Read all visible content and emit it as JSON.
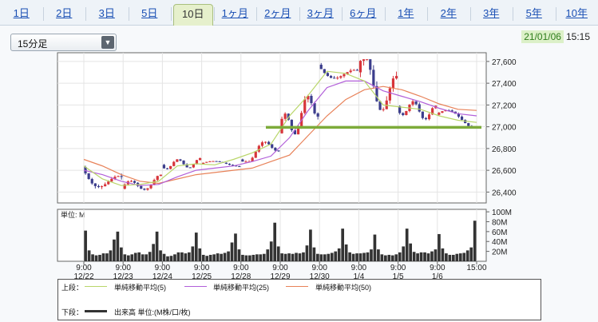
{
  "tabs": [
    "1日",
    "2日",
    "3日",
    "5日",
    "10日",
    "1ヶ月",
    "2ヶ月",
    "3ヶ月",
    "6ヶ月",
    "1年",
    "2年",
    "3年",
    "5年",
    "10年"
  ],
  "active_tab": "10日",
  "interval": {
    "label": "15分足"
  },
  "stamp": {
    "date": "21/01/06",
    "time": "15:15"
  },
  "colors": {
    "candle_up": "#d7343a",
    "candle_down": "#3b3d8c",
    "ma5": "#b9d66a",
    "ma25": "#b25fd9",
    "ma50": "#e88259",
    "support_line": "#7dab3a",
    "volume": "#333333"
  },
  "legend": {
    "upper_label": "上段：",
    "lower_label": "下段：",
    "ma5": "単純移動平均(5)",
    "ma25": "単純移動平均(25)",
    "ma50": "単純移動平均(50)",
    "volume": "出来高 単位:(M株/口/枚)"
  },
  "chart_data": {
    "type": "candlestick",
    "price_axis": {
      "ticks": [
        "27,600",
        "27,400",
        "27,200",
        "27,000",
        "26,800",
        "26,600",
        "26,400"
      ],
      "ylim": [
        26300,
        27680
      ]
    },
    "volume_axis": {
      "unit_label": "単位: M",
      "ticks": [
        "100M",
        "80M",
        "60M",
        "40M",
        "20M"
      ],
      "ylim": [
        0,
        105
      ]
    },
    "x_ticks": [
      {
        "time": "9:00",
        "date": "12/22"
      },
      {
        "time": "9:00",
        "date": "12/23"
      },
      {
        "time": "9:00",
        "date": "12/24"
      },
      {
        "time": "9:00",
        "date": "12/25"
      },
      {
        "time": "9:00",
        "date": "12/28"
      },
      {
        "time": "9:00",
        "date": "12/29"
      },
      {
        "time": "9:00",
        "date": "12/30"
      },
      {
        "time": "9:00",
        "date": "1/4"
      },
      {
        "time": "9:00",
        "date": "1/5"
      },
      {
        "time": "9:00",
        "date": "1/6"
      },
      {
        "time": "15:00",
        "date": ""
      }
    ],
    "sessions": [
      {
        "day": "12/22",
        "open": 26630,
        "close": 26430,
        "high": 26680,
        "low": 26370
      },
      {
        "day": "12/23",
        "open": 26430,
        "close": 26510,
        "high": 26560,
        "low": 26400
      },
      {
        "day": "12/24",
        "open": 26650,
        "close": 26670,
        "high": 26720,
        "low": 26600
      },
      {
        "day": "12/25",
        "open": 26660,
        "close": 26660,
        "high": 26700,
        "low": 26630
      },
      {
        "day": "12/28",
        "open": 26700,
        "close": 26850,
        "high": 26880,
        "low": 26680
      },
      {
        "day": "12/29",
        "open": 26940,
        "close": 27230,
        "high": 27320,
        "low": 26930
      },
      {
        "day": "12/30",
        "open": 27570,
        "close": 27440,
        "high": 27600,
        "low": 27380
      },
      {
        "day": "1/4",
        "open": 27500,
        "close": 27260,
        "high": 27620,
        "low": 27030
      },
      {
        "day": "1/5",
        "open": 27190,
        "close": 27120,
        "high": 27250,
        "low": 27040
      },
      {
        "day": "1/6",
        "open": 27110,
        "close": 27040,
        "high": 27180,
        "low": 27000
      }
    ],
    "ma5": [
      26640,
      26520,
      26460,
      26470,
      26500,
      26640,
      26660,
      26650,
      26700,
      26760,
      26840,
      27100,
      27290,
      27510,
      27490,
      27420,
      27200,
      27180,
      27160,
      27100,
      27060,
      27040
    ],
    "ma25": [
      26600,
      26560,
      26500,
      26460,
      26470,
      26540,
      26600,
      26620,
      26640,
      26680,
      26730,
      26900,
      27150,
      27360,
      27420,
      27420,
      27330,
      27280,
      27230,
      27170,
      27120,
      27100
    ],
    "ma50": [
      26700,
      26640,
      26560,
      26500,
      26480,
      26520,
      26560,
      26580,
      26600,
      26620,
      26680,
      26740,
      26920,
      27100,
      27250,
      27340,
      27370,
      27340,
      27280,
      27210,
      27160,
      27150
    ],
    "support_line": {
      "from_session": 5,
      "to_session": 10,
      "value": 26995
    },
    "volume": [
      62,
      22,
      14,
      12,
      13,
      16,
      16,
      22,
      44,
      60,
      28,
      14,
      12,
      14,
      17,
      18,
      14,
      14,
      19,
      35,
      60,
      22,
      15,
      10,
      11,
      14,
      18,
      18,
      16,
      18,
      30,
      58,
      26,
      13,
      11,
      13,
      14,
      16,
      15,
      17,
      20,
      38,
      56,
      24,
      13,
      12,
      12,
      13,
      14,
      14,
      15,
      24,
      40,
      78,
      30,
      16,
      15,
      16,
      15,
      17,
      16,
      18,
      32,
      64,
      28,
      15,
      14,
      14,
      15,
      17,
      20,
      26,
      66,
      34,
      18,
      15,
      16,
      16,
      17,
      18,
      24,
      54,
      24,
      14,
      12,
      13,
      12,
      14,
      18,
      30,
      66,
      36,
      19,
      16,
      18,
      18,
      16,
      20,
      24,
      55,
      26,
      16,
      13,
      13,
      15,
      16,
      17,
      22,
      28,
      82
    ]
  }
}
